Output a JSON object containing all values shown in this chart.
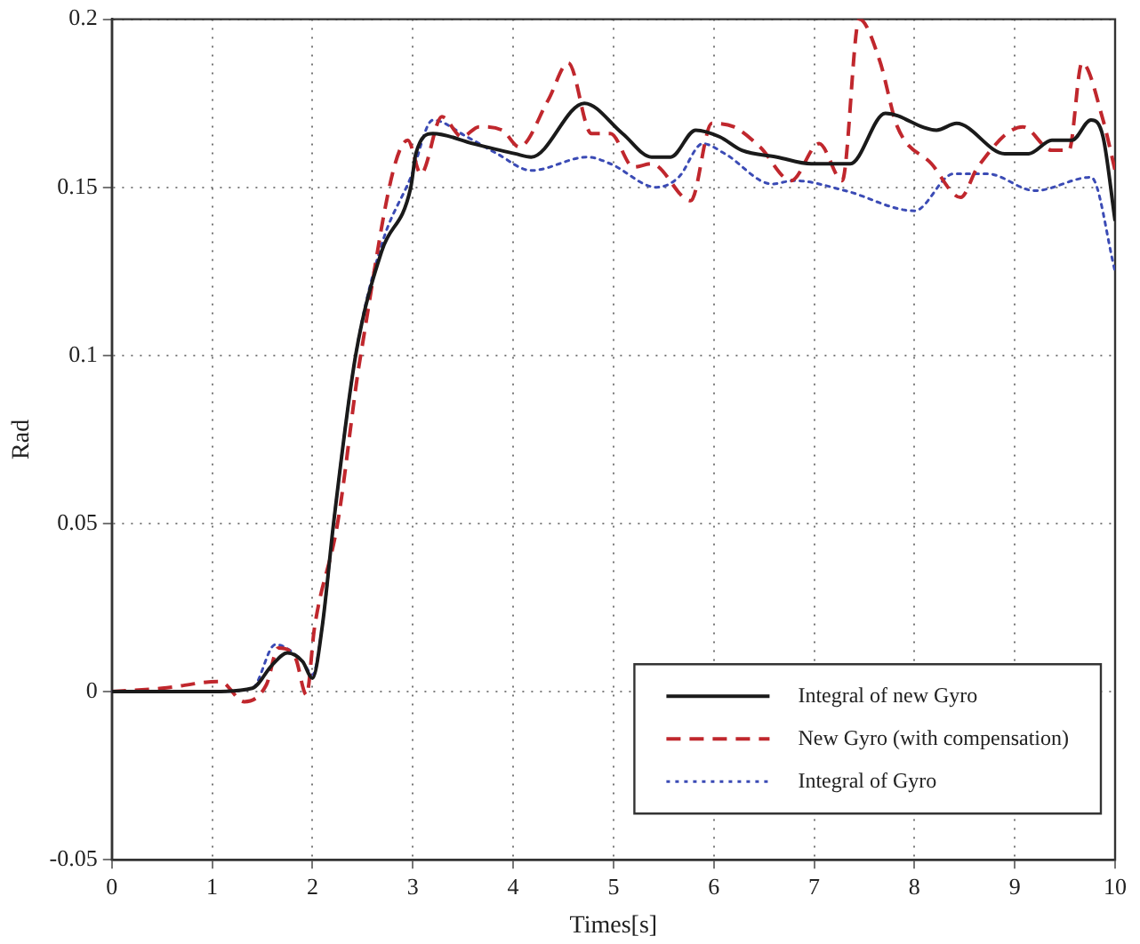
{
  "chart_data": {
    "type": "line",
    "xlabel": "Times[s]",
    "ylabel": "Rad",
    "xlim": [
      0,
      10
    ],
    "ylim": [
      -0.05,
      0.2
    ],
    "xticks": [
      0,
      1,
      2,
      3,
      4,
      5,
      6,
      7,
      8,
      9,
      10
    ],
    "yticks": [
      -0.05,
      0,
      0.05,
      0.1,
      0.15,
      0.2
    ],
    "grid": true,
    "legend": "bottom right",
    "marker": "none",
    "series": [
      {
        "name": "Integral of new Gyro",
        "color": "#1a1a1a",
        "line_style": "solid",
        "x": [
          0,
          1,
          1.4,
          1.6,
          1.75,
          1.9,
          2.0,
          2.1,
          2.21,
          2.43,
          2.69,
          2.98,
          3.03,
          3.2,
          3.6,
          4.02,
          4.18,
          4.71,
          5.09,
          5.38,
          5.57,
          5.82,
          6.06,
          6.28,
          6.63,
          6.97,
          7.19,
          7.36,
          7.71,
          8.22,
          8.42,
          8.9,
          9.14,
          9.37,
          9.57,
          9.76,
          9.88,
          10
        ],
        "values": [
          0,
          0,
          0.001,
          0.008,
          0.0115,
          0.009,
          0.004,
          0.02,
          0.05,
          0.1,
          0.131,
          0.15,
          0.16,
          0.166,
          0.163,
          0.16,
          0.159,
          0.175,
          0.166,
          0.159,
          0.159,
          0.167,
          0.165,
          0.161,
          0.159,
          0.157,
          0.157,
          0.157,
          0.172,
          0.167,
          0.169,
          0.16,
          0.16,
          0.164,
          0.164,
          0.17,
          0.165,
          0.14
        ]
      },
      {
        "name": "New Gyro (with compensation)",
        "color": "#c0272d",
        "line_style": "dashed",
        "x": [
          0,
          0.5,
          1.08,
          1.32,
          1.54,
          1.66,
          1.83,
          1.94,
          2.02,
          2.25,
          2.48,
          2.95,
          3.08,
          3.29,
          3.49,
          3.66,
          3.89,
          4.06,
          4.35,
          4.55,
          4.78,
          4.97,
          5.2,
          5.38,
          5.77,
          5.98,
          6.2,
          6.46,
          6.77,
          7.05,
          7.28,
          7.45,
          7.65,
          7.83,
          8.17,
          8.46,
          8.63,
          9.08,
          9.37,
          9.54,
          9.67,
          9.88,
          10
        ],
        "values": [
          0,
          0.001,
          0.003,
          -0.003,
          0.002,
          0.013,
          0.01,
          -0.001,
          0.019,
          0.05,
          0.1,
          0.164,
          0.154,
          0.171,
          0.165,
          0.168,
          0.167,
          0.162,
          0.176,
          0.187,
          0.166,
          0.166,
          0.156,
          0.157,
          0.146,
          0.169,
          0.168,
          0.162,
          0.152,
          0.163,
          0.152,
          0.2,
          0.188,
          0.168,
          0.157,
          0.147,
          0.156,
          0.168,
          0.161,
          0.161,
          0.187,
          0.17,
          0.155
        ]
      },
      {
        "name": "Integral of Gyro",
        "color": "#3b4bb5",
        "line_style": "dotted",
        "x": [
          0,
          1,
          1.4,
          1.63,
          1.9,
          2.0,
          2.1,
          2.21,
          2.43,
          2.69,
          2.98,
          3.2,
          3.54,
          3.84,
          4.18,
          4.74,
          4.97,
          5.43,
          5.65,
          5.89,
          6.11,
          6.58,
          6.8,
          7.31,
          8.0,
          8.39,
          8.73,
          9.2,
          9.76,
          10
        ],
        "values": [
          0,
          0,
          0.001,
          0.014,
          0.009,
          0.005,
          0.02,
          0.05,
          0.1,
          0.133,
          0.153,
          0.17,
          0.165,
          0.16,
          0.155,
          0.159,
          0.157,
          0.15,
          0.153,
          0.163,
          0.16,
          0.151,
          0.152,
          0.149,
          0.143,
          0.154,
          0.154,
          0.149,
          0.153,
          0.125
        ]
      }
    ]
  }
}
